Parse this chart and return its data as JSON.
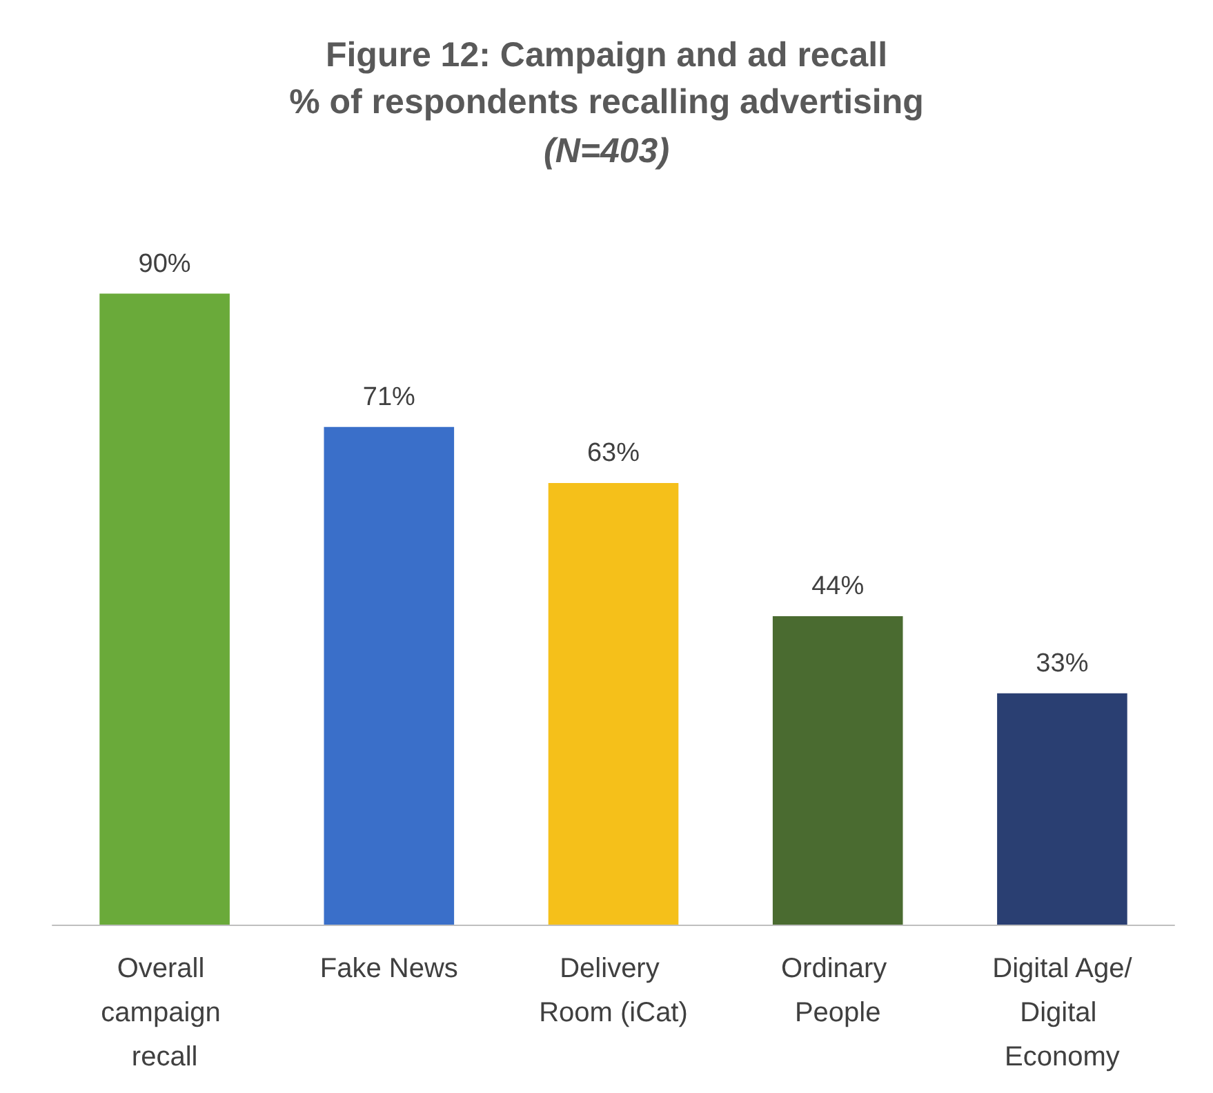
{
  "chart_data": {
    "type": "bar",
    "title": "Figure 12: Campaign and ad recall\n% of respondents recalling advertising",
    "subtitle": "(N=403)",
    "categories": [
      "Overall campaign recall",
      "Fake News",
      "Delivery Room (iCat)",
      "Ordinary People",
      "Digital Age/Digital Economy"
    ],
    "values": [
      90,
      71,
      63,
      44,
      33
    ],
    "colors": [
      "#6aaa3a",
      "#3a6fc9",
      "#f5c01a",
      "#4a6b30",
      "#2a3f72"
    ],
    "value_labels": [
      "90%",
      "71%",
      "63%",
      "44%",
      "33%"
    ]
  }
}
